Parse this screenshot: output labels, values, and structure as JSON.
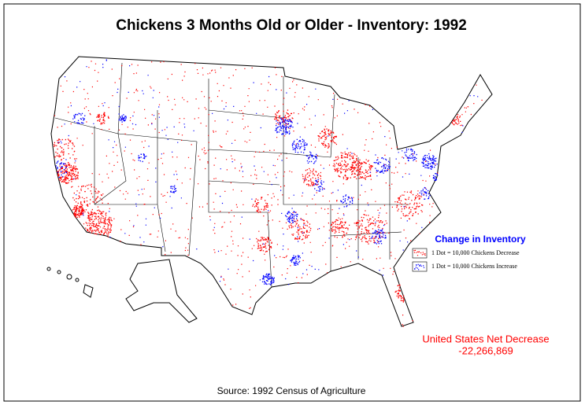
{
  "title": "Chickens 3 Months Old or Older - Inventory:  1992",
  "legend": {
    "title": "Change in Inventory",
    "items": [
      {
        "label": "1 Dot = 10,000 Chickens Decrease",
        "color": "#ff0000"
      },
      {
        "label": "1 Dot = 10,000 Chickens Increase",
        "color": "#0000ff"
      }
    ]
  },
  "summary": {
    "label": "United States Net Decrease",
    "value": "-22,266,869"
  },
  "source": "Source:  1992 Census of Agriculture"
}
